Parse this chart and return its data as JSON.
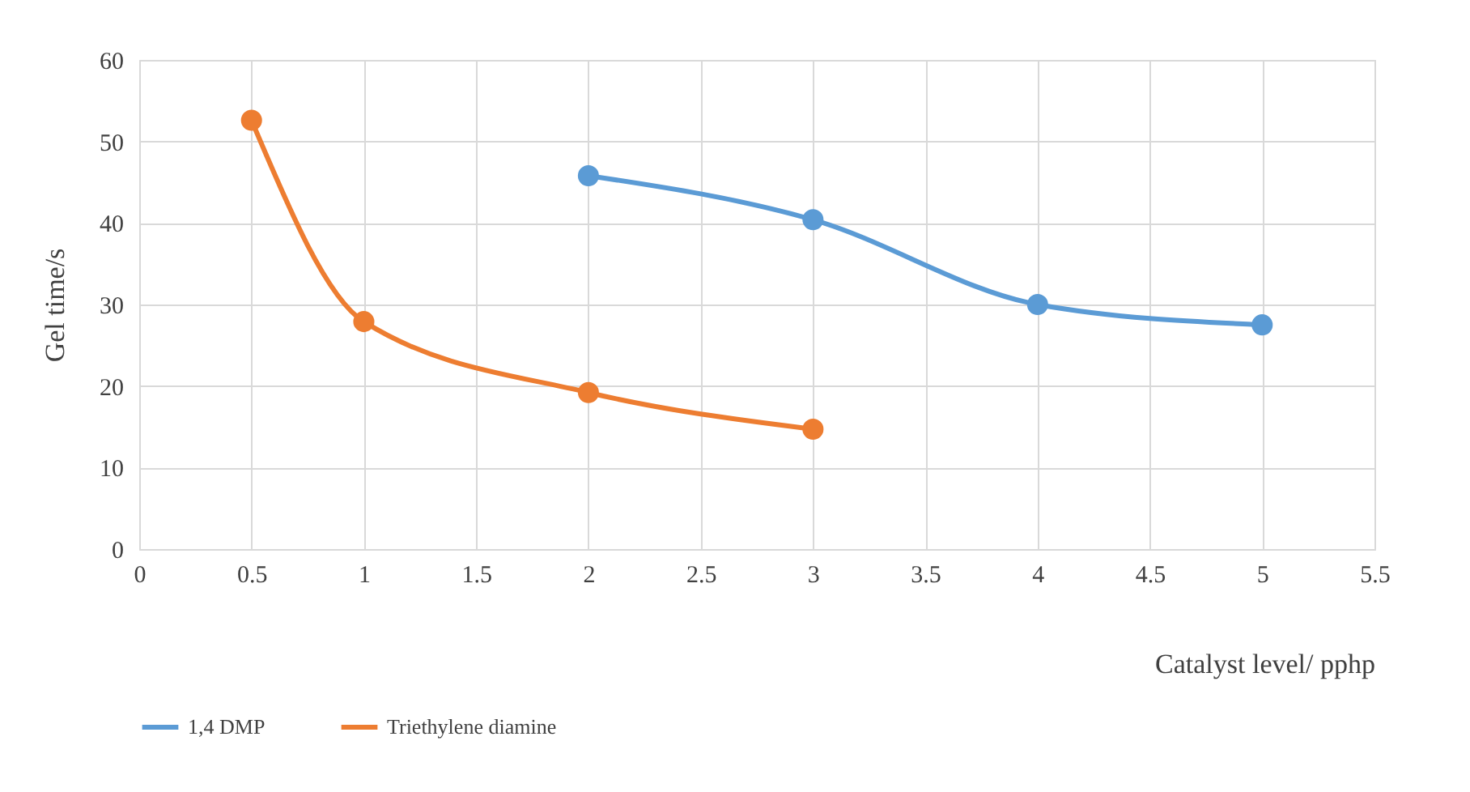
{
  "chart_data": {
    "type": "line",
    "xlabel": "Catalyst level/ pphp",
    "ylabel": "Gel time/s",
    "xlim": [
      0,
      5.5
    ],
    "xticks": [
      0,
      0.5,
      1,
      1.5,
      2,
      2.5,
      3,
      3.5,
      4,
      4.5,
      5,
      5.5
    ],
    "ylim": [
      0,
      60
    ],
    "yticks": [
      0,
      10,
      20,
      30,
      40,
      50,
      60
    ],
    "grid": true,
    "legend": "bottom",
    "marker": "circle",
    "line_style": "solid",
    "series": [
      {
        "name": "1,4 DMP",
        "color": "#5b9bd5",
        "x": [
          2,
          3,
          4,
          5
        ],
        "values": [
          45.8,
          40.4,
          30,
          27.5
        ]
      },
      {
        "name": "Triethylene diamine",
        "color": "#ed7d31",
        "x": [
          0.5,
          1,
          2,
          3
        ],
        "values": [
          52.6,
          27.9,
          19.2,
          14.7
        ]
      }
    ]
  }
}
